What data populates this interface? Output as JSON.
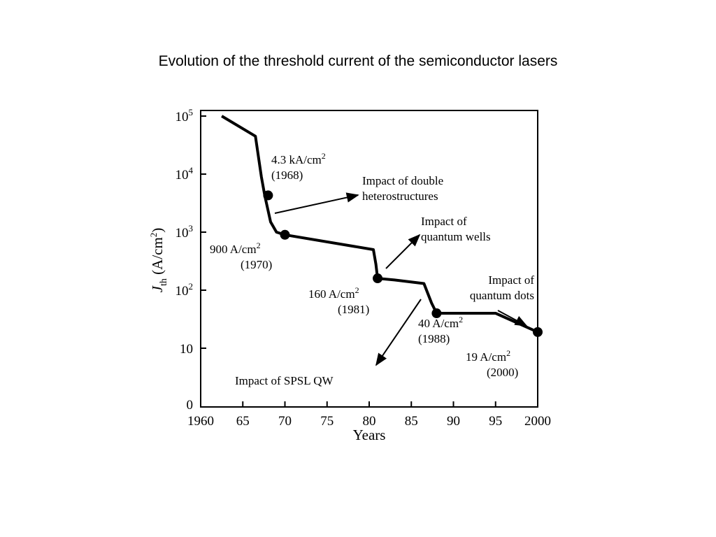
{
  "slide": {
    "title": "Evolution of the threshold current of the semiconductor lasers"
  },
  "chart_data": {
    "type": "line",
    "title": "Evolution of the threshold current of the semiconductor lasers",
    "xlabel": "Years",
    "ylabel_main": "J",
    "ylabel_sub": "th",
    "ylabel_unit": "(A/cm",
    "ylabel_unit_sup": "2",
    "ylabel_unit_close": ")",
    "xlim": [
      1960,
      2000
    ],
    "x_ticks": [
      {
        "value": 1960,
        "label": "1960"
      },
      {
        "value": 1965,
        "label": "65"
      },
      {
        "value": 1970,
        "label": "70"
      },
      {
        "value": 1975,
        "label": "75"
      },
      {
        "value": 1980,
        "label": "80"
      },
      {
        "value": 1985,
        "label": "85"
      },
      {
        "value": 1990,
        "label": "90"
      },
      {
        "value": 1995,
        "label": "95"
      },
      {
        "value": 2000,
        "label": "2000"
      }
    ],
    "y_ticks": [
      {
        "label": "10",
        "sup": "5"
      },
      {
        "label": "10",
        "sup": "4"
      },
      {
        "label": "10",
        "sup": "3"
      },
      {
        "label": "10",
        "sup": "2"
      },
      {
        "label": "10",
        "sup": ""
      },
      {
        "label": "0",
        "sup": ""
      }
    ],
    "series": [
      {
        "x": [
          1962.5,
          1966.5,
          1967.2,
          1967.6,
          1968.3,
          1969.0,
          1970.0,
          1980.5,
          1980.8,
          1981.0,
          1983.0,
          1986.5,
          1987.4,
          1988.0,
          1995.0,
          2000.0
        ],
        "y": [
          100000,
          45000,
          9000,
          4300,
          1500,
          1000,
          900,
          500,
          280,
          160,
          150,
          130,
          60,
          40,
          40,
          19
        ]
      }
    ],
    "markers": [
      {
        "x": 1968,
        "y": 4300
      },
      {
        "x": 1970,
        "y": 900
      },
      {
        "x": 1981,
        "y": 160
      },
      {
        "x": 1988,
        "y": 40
      },
      {
        "x": 2000,
        "y": 19
      }
    ],
    "annotations": [
      {
        "id": "a1968",
        "lines": [
          "4.3 kA/cm",
          "(1968)"
        ],
        "sup": "2"
      },
      {
        "id": "a1970",
        "lines": [
          "900 A/cm",
          "(1970)"
        ],
        "sup": "2"
      },
      {
        "id": "a1981",
        "lines": [
          "160 A/cm",
          "(1981)"
        ],
        "sup": "2"
      },
      {
        "id": "a1988",
        "lines": [
          "40 A/cm",
          "(1988)"
        ],
        "sup": "2"
      },
      {
        "id": "a2000",
        "lines": [
          "19 A/cm",
          "(2000)"
        ],
        "sup": "2"
      },
      {
        "id": "dh",
        "lines": [
          "Impact of double",
          "heterostructures"
        ]
      },
      {
        "id": "qw",
        "lines": [
          "Impact of",
          "quantum wells"
        ]
      },
      {
        "id": "qd",
        "lines": [
          "Impact of",
          "quantum dots"
        ]
      },
      {
        "id": "spsl",
        "lines": [
          "Impact of  SPSL QW"
        ]
      }
    ]
  }
}
